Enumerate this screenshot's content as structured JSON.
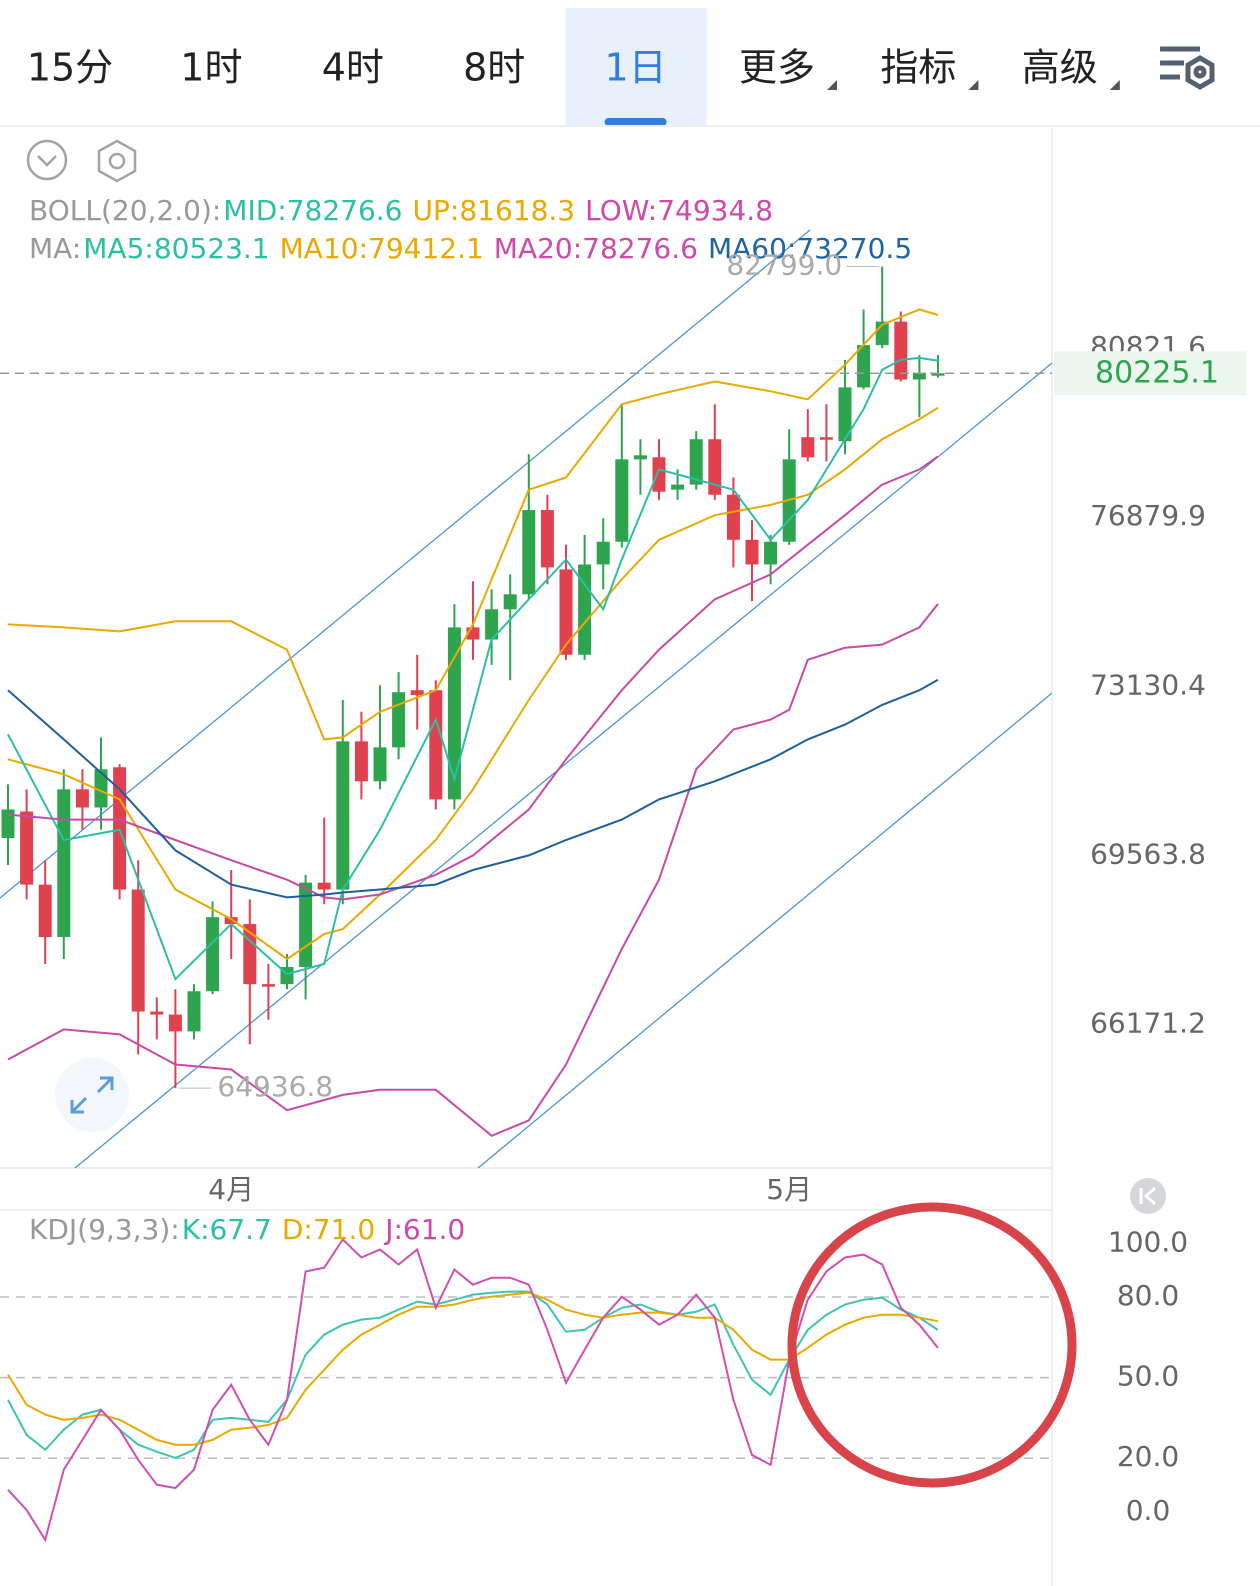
{
  "tabs": [
    "15分",
    "1时",
    "4时",
    "8时",
    "1日",
    "更多",
    "指标",
    "高级"
  ],
  "active_tab": 4,
  "chart_data": [
    {
      "type": "candlestick",
      "log_scale": true,
      "grid": false,
      "up_color": "#2ea44f",
      "down_color": "#e0414f",
      "legend": [
        {
          "prefix": "BOLL(20,2.0):",
          "items": [
            {
              "text": "MID:78276.6",
              "color": "#2bbfa5"
            },
            {
              "text": "UP:81618.3",
              "color": "#eba900"
            },
            {
              "text": "LOW:74934.8",
              "color": "#d049a9"
            }
          ]
        },
        {
          "prefix": "MA:",
          "items": [
            {
              "text": "MA5:80523.1",
              "color": "#2bbfa5"
            },
            {
              "text": "MA10:79412.1",
              "color": "#eba900"
            },
            {
              "text": "MA20:78276.6",
              "color": "#d049a9"
            },
            {
              "text": "MA60:73270.5",
              "color": "#1e64a8"
            }
          ]
        }
      ],
      "categories": [
        null,
        null,
        null,
        null,
        null,
        null,
        null,
        null,
        null,
        null,
        null,
        null,
        "4月",
        null,
        null,
        null,
        null,
        null,
        null,
        null,
        null,
        null,
        null,
        null,
        null,
        null,
        null,
        null,
        null,
        null,
        null,
        null,
        null,
        null,
        null,
        null,
        null,
        null,
        null,
        null,
        null,
        null,
        "5月",
        null,
        null,
        null,
        null,
        null,
        null,
        null,
        null
      ],
      "open": [
        69923,
        70472,
        68964,
        67904,
        70936,
        70556,
        71400,
        68864,
        66424,
        66364,
        66035,
        66824,
        68304,
        68164,
        66964,
        66964,
        67304,
        69004,
        68864,
        71949,
        71105,
        71822,
        73046,
        73046,
        70725,
        74416,
        74149,
        74815,
        75148,
        77043,
        75703,
        73816,
        75814,
        76325,
        78208,
        78255,
        77509,
        77626,
        78674,
        77393,
        76369,
        75814,
        76325,
        78721,
        78721,
        78628,
        79890,
        80895,
        81459,
        80076,
        80216
      ],
      "high": [
        71041,
        70936,
        69464,
        71358,
        71358,
        72033,
        71463,
        69464,
        66704,
        66864,
        66964,
        68624,
        69264,
        68664,
        67364,
        67564,
        69164,
        70345,
        72835,
        72582,
        73152,
        73439,
        73816,
        73261,
        74926,
        75437,
        75260,
        75592,
        78325,
        77393,
        76258,
        76480,
        76858,
        79493,
        78674,
        78674,
        77975,
        78862,
        79493,
        77789,
        76813,
        76480,
        78907,
        79377,
        79493,
        80542,
        81753,
        82799,
        81704,
        80659,
        80659
      ],
      "low": [
        69364,
        68664,
        67364,
        67464,
        70092,
        70092,
        68664,
        65586,
        65879,
        64936.8,
        65879,
        66764,
        67464,
        65781,
        66264,
        66864,
        66664,
        68564,
        68564,
        70725,
        70936,
        71569,
        72202,
        70514,
        70514,
        73705,
        73594,
        73261,
        75037,
        75370,
        73705,
        73705,
        75260,
        76192,
        77393,
        77276,
        77276,
        77509,
        77276,
        75748,
        74993,
        75370,
        76258,
        78161,
        78161,
        78325,
        79843,
        80822,
        80030,
        79190,
        80123
      ],
      "close": [
        70514,
        68964,
        67904,
        70936,
        70556,
        71358,
        68864,
        66424,
        66364,
        66035,
        66824,
        68304,
        68164,
        66964,
        66924,
        67304,
        69004,
        68864,
        71949,
        71105,
        71822,
        73003,
        72940,
        70725,
        74416,
        74149,
        74815,
        75148,
        77043,
        75748,
        73816,
        75814,
        76325,
        78208,
        78301,
        77463,
        77626,
        78674,
        77393,
        76369,
        75814,
        76325,
        78208,
        78255,
        78674,
        79890,
        80895,
        81459,
        80076,
        80240,
        80225.1
      ],
      "series": [
        {
          "color": "#eba900",
          "x": [
            0,
            3,
            6,
            9,
            12,
            15,
            17,
            18,
            20,
            23,
            25,
            28,
            30,
            33,
            35,
            38,
            41,
            43,
            45,
            47,
            49,
            50
          ],
          "values": [
            74482,
            74415,
            74327,
            74549,
            74549,
            73927,
            71991,
            72033,
            72582,
            73046,
            74482,
            77509,
            77789,
            79493,
            79727,
            80030,
            79797,
            79610,
            80426,
            81386,
            81753,
            81618.3
          ]
        },
        {
          "color": "#eba900",
          "x": [
            0,
            3,
            6,
            9,
            12,
            15,
            17,
            18,
            20,
            23,
            25,
            28,
            30,
            33,
            35,
            38,
            41,
            43,
            45,
            47,
            49,
            50
          ],
          "values": [
            71569,
            71252,
            70725,
            68864,
            68264,
            67464,
            67964,
            68064,
            68764,
            69880,
            70936,
            72835,
            74038,
            75481,
            76369,
            76927,
            77160,
            77393,
            77975,
            78674,
            79143,
            79412.1
          ]
        },
        {
          "color": "#2bbfa5",
          "x": [
            0,
            3,
            6,
            9,
            12,
            15,
            17,
            18,
            20,
            23,
            24,
            26,
            28,
            30,
            32,
            33,
            35,
            37,
            39,
            41,
            43,
            45,
            46,
            47,
            48,
            49,
            50
          ],
          "values": [
            72097,
            69880,
            70092,
            67064,
            68164,
            67164,
            67364,
            68864,
            70092,
            72413,
            71147,
            74149,
            75037,
            75925,
            74815,
            75925,
            77975,
            77742,
            77509,
            76369,
            77276,
            78674,
            79377,
            80309,
            80542,
            80589,
            80523.1
          ]
        },
        {
          "color": "#c94aa6",
          "x": [
            0,
            3,
            6,
            9,
            12,
            15,
            17,
            18,
            20,
            23,
            25,
            28,
            30,
            33,
            35,
            38,
            41,
            43,
            45,
            47,
            49,
            50
          ],
          "values": [
            70408,
            70303,
            70303,
            69880,
            69464,
            69064,
            68704,
            68664,
            68764,
            69164,
            69564,
            70514,
            71569,
            73046,
            73927,
            75037,
            75592,
            76258,
            76927,
            77626,
            77975,
            78276.6
          ]
        },
        {
          "color": "#c94aa6",
          "x": [
            0,
            3,
            6,
            9,
            12,
            15,
            17,
            18,
            20,
            23,
            25,
            26,
            28,
            30,
            33,
            35,
            37,
            39,
            41,
            42,
            43,
            45,
            47,
            49,
            50
          ],
          "values": [
            65489,
            66074,
            65976,
            65391,
            65294,
            64514,
            64709,
            64806,
            64904,
            64904,
            64319,
            64027,
            64319,
            65391,
            67664,
            69064,
            71358,
            72202,
            72413,
            72624,
            73705,
            73971,
            74038,
            74416,
            74934.8
          ]
        },
        {
          "color": "#1e5f9e",
          "x": [
            0,
            3,
            6,
            9,
            12,
            15,
            17,
            18,
            20,
            23,
            25,
            28,
            30,
            33,
            35,
            38,
            41,
            43,
            45,
            47,
            49,
            50
          ],
          "values": [
            73046,
            71991,
            70936,
            69669,
            68964,
            68704,
            68764,
            68804,
            68864,
            68964,
            69264,
            69564,
            69880,
            70303,
            70725,
            71105,
            71569,
            71991,
            72307,
            72729,
            73046,
            73270.5
          ]
        }
      ],
      "high_label": "82799.0",
      "low_label": "64936.8",
      "last_price": 80225.1,
      "ylim": [
        63420,
        86260
      ],
      "yticks": [
        80821.6,
        76879.9,
        73130.4,
        69563.8,
        66171.2
      ]
    },
    {
      "type": "line",
      "grid": true,
      "legend": {
        "prefix": "KDJ(9,3,3):",
        "items": [
          {
            "text": "K:67.7",
            "color": "#2bbfa5"
          },
          {
            "text": "D:71.0",
            "color": "#eba900"
          },
          {
            "text": "J:61.0",
            "color": "#d049a9"
          }
        ]
      },
      "series": [
        {
          "color": "#3cc6b0",
          "values": [
            41.7,
            28.7,
            23.1,
            30.6,
            36.2,
            38.0,
            30.6,
            25.0,
            22.4,
            20.1,
            23.1,
            34.3,
            35.0,
            34.3,
            33.5,
            41.7,
            58.5,
            66.0,
            69.7,
            71.6,
            72.3,
            75.3,
            78.3,
            77.2,
            79.0,
            80.9,
            81.6,
            82.0,
            82.0,
            77.2,
            67.1,
            67.8,
            72.3,
            76.0,
            77.2,
            74.5,
            73.4,
            74.5,
            77.2,
            62.2,
            49.2,
            43.6,
            56.7,
            67.8,
            73.4,
            77.2,
            79.0,
            79.8,
            75.3,
            72.3,
            67.7
          ]
        },
        {
          "color": "#eba900",
          "values": [
            51.1,
            39.9,
            36.2,
            34.3,
            35.0,
            36.2,
            34.3,
            30.6,
            26.8,
            25.0,
            25.0,
            26.8,
            30.6,
            31.3,
            32.4,
            35.0,
            45.5,
            52.9,
            60.4,
            66.0,
            69.7,
            73.4,
            76.4,
            76.4,
            77.2,
            79.0,
            80.1,
            80.9,
            81.6,
            79.0,
            75.3,
            73.4,
            72.3,
            73.4,
            74.2,
            74.2,
            73.4,
            72.3,
            72.3,
            67.8,
            60.4,
            56.7,
            56.7,
            61.1,
            66.0,
            69.7,
            72.3,
            73.4,
            73.4,
            72.3,
            71.0
          ]
        },
        {
          "color": "#d04fb0",
          "values": [
            8.2,
            0.7,
            -10.4,
            15.7,
            26.8,
            38.0,
            30.6,
            19.4,
            10.1,
            8.9,
            15.7,
            38.0,
            47.3,
            34.3,
            25.0,
            41.7,
            89.5,
            90.9,
            101.4,
            94.7,
            97.7,
            92.1,
            97.7,
            76.0,
            90.2,
            84.6,
            87.2,
            87.2,
            84.6,
            67.8,
            48.1,
            60.4,
            72.3,
            80.1,
            75.3,
            69.7,
            73.4,
            80.9,
            72.3,
            41.7,
            21.2,
            17.5,
            56.7,
            79.0,
            89.5,
            94.7,
            95.8,
            92.1,
            76.0,
            69.7,
            61.0
          ]
        }
      ],
      "ylim": [
        -20.9,
        112.4
      ],
      "yticks": [
        {
          "value": 100,
          "label": "100.0"
        },
        {
          "value": 80,
          "label": "80.0"
        },
        {
          "value": 50,
          "label": "50.0"
        },
        {
          "value": 20,
          "label": "20.0"
        },
        {
          "value": 0,
          "label": "0.0"
        }
      ]
    }
  ]
}
